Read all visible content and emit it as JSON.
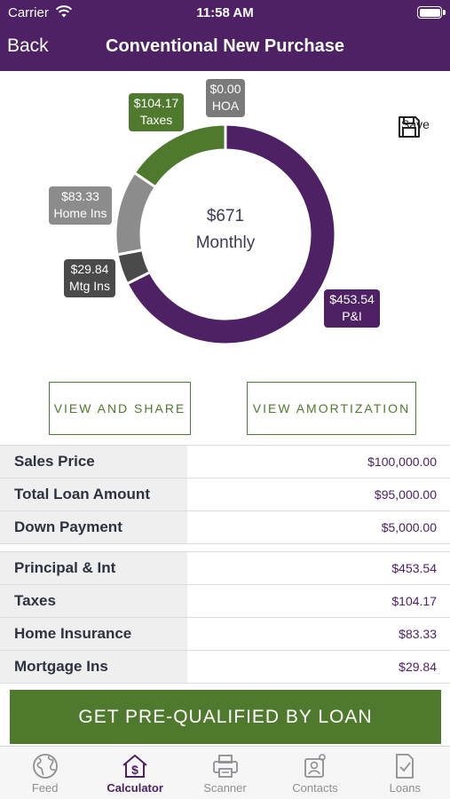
{
  "status_bar": {
    "carrier": "Carrier",
    "time": "11:58 AM"
  },
  "nav": {
    "back": "Back",
    "title": "Conventional New Purchase"
  },
  "save": {
    "label": "Save",
    "icon": "floppy-disk-icon"
  },
  "chart_data": {
    "type": "pie",
    "donut": true,
    "center": {
      "amount": "$671",
      "label": "Monthly"
    },
    "unit": "$ per month",
    "slices": [
      {
        "name": "P&I",
        "value": 453.54,
        "display": "$453.54",
        "color": "#4d2163"
      },
      {
        "name": "Mtg Ins",
        "value": 29.84,
        "display": "$29.84",
        "color": "#4a4a4a"
      },
      {
        "name": "Home Ins",
        "value": 83.33,
        "display": "$83.33",
        "color": "#8c8c8c"
      },
      {
        "name": "Taxes",
        "value": 104.17,
        "display": "$104.17",
        "color": "#4f7a2e"
      },
      {
        "name": "HOA",
        "value": 0.0,
        "display": "$0.00",
        "color": "#7a7a7a"
      }
    ]
  },
  "actions": {
    "view_share": "VIEW AND SHARE",
    "view_amortization": "VIEW AMORTIZATION"
  },
  "loan_details": [
    {
      "label": "Sales Price",
      "value": "$100,000.00"
    },
    {
      "label": "Total Loan Amount",
      "value": "$95,000.00"
    },
    {
      "label": "Down Payment",
      "value": "$5,000.00"
    }
  ],
  "payment_breakdown": [
    {
      "label": "Principal & Int",
      "value": "$453.54"
    },
    {
      "label": "Taxes",
      "value": "$104.17"
    },
    {
      "label": "Home Insurance",
      "value": "$83.33"
    },
    {
      "label": "Mortgage Ins",
      "value": "$29.84"
    }
  ],
  "cta": {
    "label": "GET PRE-QUALIFIED BY LOAN"
  },
  "tabs": [
    {
      "label": "Feed",
      "icon": "globe-icon",
      "active": false
    },
    {
      "label": "Calculator",
      "icon": "house-dollar-icon",
      "active": true
    },
    {
      "label": "Scanner",
      "icon": "printer-icon",
      "active": false
    },
    {
      "label": "Contacts",
      "icon": "contacts-icon",
      "active": false
    },
    {
      "label": "Loans",
      "icon": "document-check-icon",
      "active": false
    }
  ],
  "colors": {
    "brand_purple": "#4d2163",
    "brand_green": "#4f7a2e"
  }
}
